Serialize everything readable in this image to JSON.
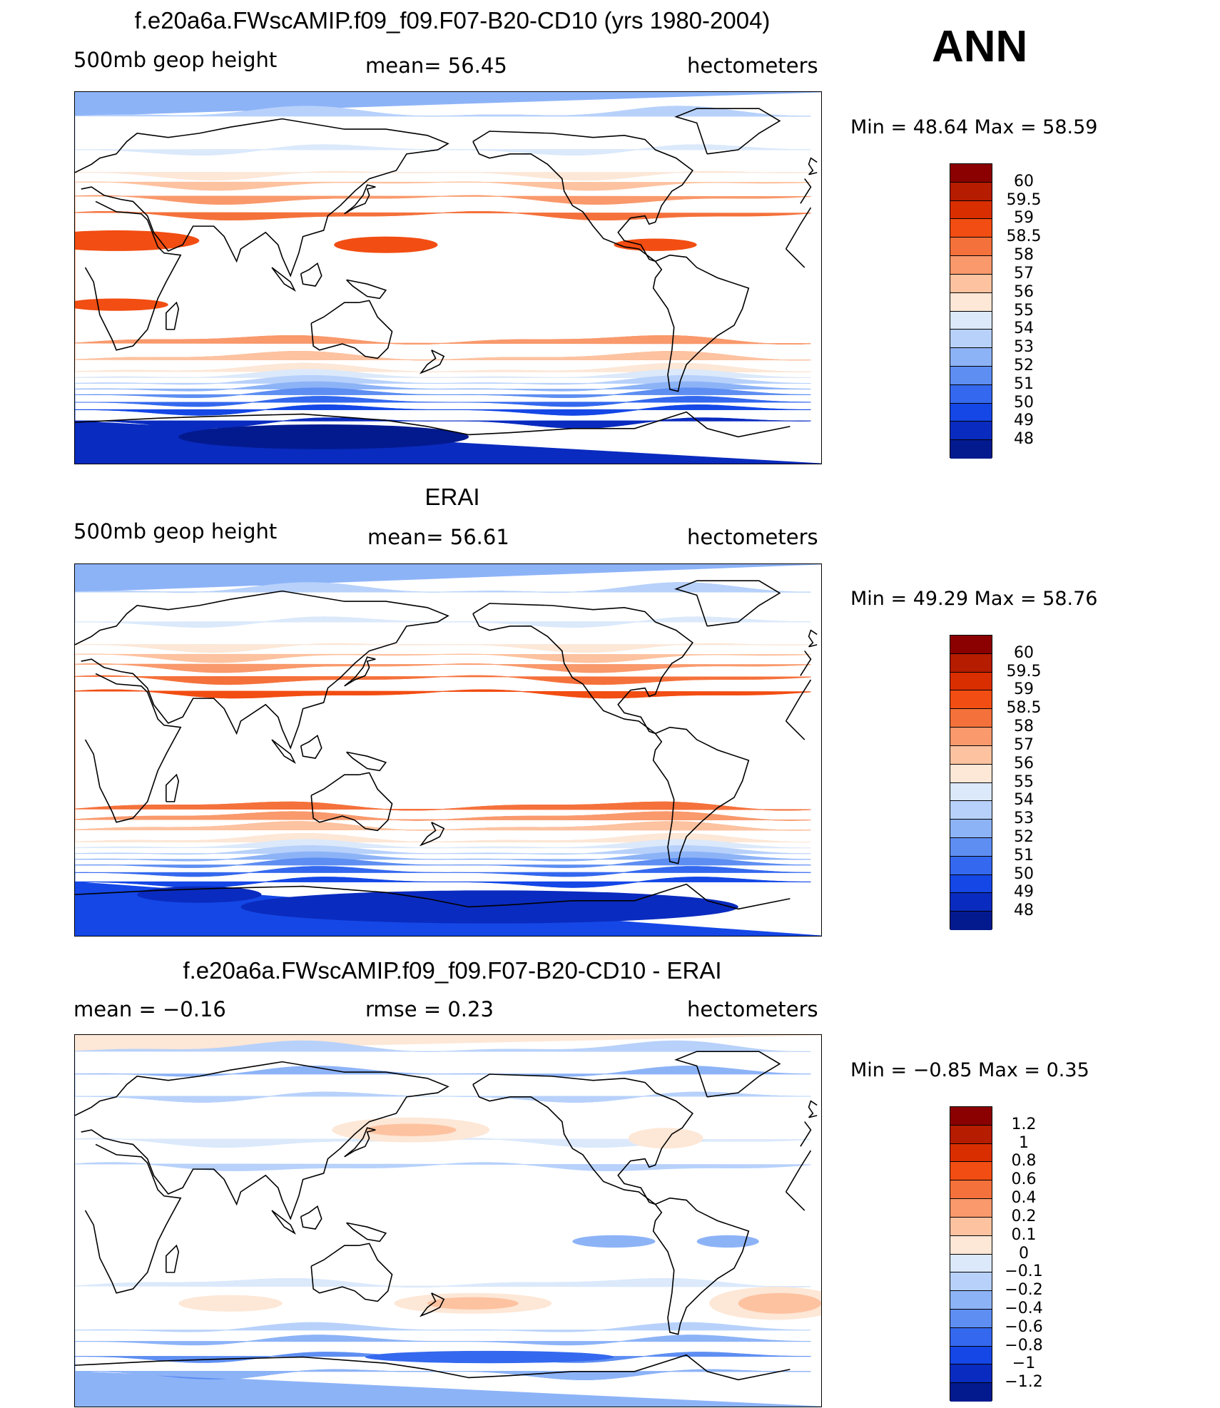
{
  "season": "ANN",
  "panels": [
    {
      "title": "f.e20a6a.FWscAMIP.f09_f09.F07-B20-CD10 (yrs 1980-2004)",
      "left_label": "500mb geop height",
      "mid_label": "mean=   56.45",
      "right_label": "hectometers",
      "min_max": "Min =    48.64  Max =    58.59",
      "legend_levels": [
        "60",
        "59.5",
        "59",
        "58.5",
        "58",
        "57",
        "56",
        "55",
        "54",
        "53",
        "52",
        "51",
        "50",
        "49",
        "48"
      ],
      "legend_colors": [
        "#8b0000",
        "#b51c00",
        "#d92e00",
        "#f24d12",
        "#f5713b",
        "#f9996c",
        "#fdc2a0",
        "#fde7d6",
        "#dbe9fb",
        "#b7d1fb",
        "#8db3f7",
        "#5e8ef2",
        "#3468ee",
        "#1447e6",
        "#0a2bbf",
        "#031a8f"
      ],
      "bands": [
        {
          "lat": 90,
          "color": "#8db3f7"
        },
        {
          "lat": 80,
          "color": "#b7d1fb"
        },
        {
          "lat": 62,
          "color": "#dbe9fb"
        },
        {
          "lat": 50,
          "color": "#fde7d6"
        },
        {
          "lat": 45,
          "color": "#fdc2a0"
        },
        {
          "lat": 38,
          "color": "#f9996c"
        },
        {
          "lat": 30,
          "color": "#f5713b"
        },
        {
          "lat": -30,
          "color": "#f9996c"
        },
        {
          "lat": -38,
          "color": "#fdc2a0"
        },
        {
          "lat": -44,
          "color": "#fde7d6"
        },
        {
          "lat": -47,
          "color": "#dbe9fb"
        },
        {
          "lat": -50,
          "color": "#b7d1fb"
        },
        {
          "lat": -53,
          "color": "#8db3f7"
        },
        {
          "lat": -56,
          "color": "#5e8ef2"
        },
        {
          "lat": -60,
          "color": "#3468ee"
        },
        {
          "lat": -64,
          "color": "#1447e6"
        },
        {
          "lat": -70,
          "color": "#0a2bbf"
        },
        {
          "lat": -90,
          "color": "#0a2bbf"
        }
      ],
      "blobs": [
        {
          "lon": 20,
          "lat": 18,
          "rlon": 40,
          "rlat": 5,
          "color": "#f24d12"
        },
        {
          "lon": 150,
          "lat": 16,
          "rlon": 25,
          "rlat": 4,
          "color": "#f24d12"
        },
        {
          "lon": 280,
          "lat": 16,
          "rlon": 20,
          "rlat": 3,
          "color": "#f24d12"
        },
        {
          "lon": 20,
          "lat": -13,
          "rlon": 25,
          "rlat": 3,
          "color": "#f24d12"
        },
        {
          "lon": 120,
          "lat": -77,
          "rlon": 70,
          "rlat": 6,
          "color": "#031a8f"
        }
      ]
    },
    {
      "title": "ERAI",
      "left_label": "500mb geop height",
      "mid_label": "mean=   56.61",
      "right_label": "hectometers",
      "min_max": "Min =    49.29  Max =    58.76",
      "legend_levels": [
        "60",
        "59.5",
        "59",
        "58.5",
        "58",
        "57",
        "56",
        "55",
        "54",
        "53",
        "52",
        "51",
        "50",
        "49",
        "48"
      ],
      "legend_colors": [
        "#8b0000",
        "#b51c00",
        "#d92e00",
        "#f24d12",
        "#f5713b",
        "#f9996c",
        "#fdc2a0",
        "#fde7d6",
        "#dbe9fb",
        "#b7d1fb",
        "#8db3f7",
        "#5e8ef2",
        "#3468ee",
        "#1447e6",
        "#0a2bbf",
        "#031a8f"
      ],
      "bands": [
        {
          "lat": 90,
          "color": "#8db3f7"
        },
        {
          "lat": 78,
          "color": "#b7d1fb"
        },
        {
          "lat": 62,
          "color": "#dbe9fb"
        },
        {
          "lat": 50,
          "color": "#fde7d6"
        },
        {
          "lat": 45,
          "color": "#fdc2a0"
        },
        {
          "lat": 40,
          "color": "#f9996c"
        },
        {
          "lat": 34,
          "color": "#f5713b"
        },
        {
          "lat": 27,
          "color": "#f24d12"
        },
        {
          "lat": -27,
          "color": "#f5713b"
        },
        {
          "lat": -32,
          "color": "#f9996c"
        },
        {
          "lat": -37,
          "color": "#fdc2a0"
        },
        {
          "lat": -43,
          "color": "#fde7d6"
        },
        {
          "lat": -46,
          "color": "#dbe9fb"
        },
        {
          "lat": -49,
          "color": "#b7d1fb"
        },
        {
          "lat": -52,
          "color": "#8db3f7"
        },
        {
          "lat": -55,
          "color": "#5e8ef2"
        },
        {
          "lat": -59,
          "color": "#3468ee"
        },
        {
          "lat": -64,
          "color": "#1447e6"
        },
        {
          "lat": -90,
          "color": "#1447e6"
        }
      ],
      "blobs": [
        {
          "lon": 200,
          "lat": -76,
          "rlon": 120,
          "rlat": 8,
          "color": "#0a2bbf"
        },
        {
          "lon": 60,
          "lat": -70,
          "rlon": 30,
          "rlat": 4,
          "color": "#0a2bbf"
        }
      ]
    },
    {
      "title": "f.e20a6a.FWscAMIP.f09_f09.F07-B20-CD10 - ERAI",
      "left_label": "mean =    −0.16",
      "mid_label": "rmse =     0.23",
      "right_label": "hectometers",
      "min_max": "Min =    −0.85  Max =      0.35",
      "legend_levels": [
        "1.2",
        "1",
        "0.8",
        "0.6",
        "0.4",
        "0.2",
        "0.1",
        "0",
        "−0.1",
        "−0.2",
        "−0.4",
        "−0.6",
        "−0.8",
        "−1",
        "−1.2"
      ],
      "legend_colors": [
        "#8b0000",
        "#b51c00",
        "#d92e00",
        "#f24d12",
        "#f5713b",
        "#f9996c",
        "#fdc2a0",
        "#fde7d6",
        "#dbe9fb",
        "#b7d1fb",
        "#8db3f7",
        "#5e8ef2",
        "#3468ee",
        "#1447e6",
        "#0a2bbf",
        "#031a8f"
      ],
      "bands": [
        {
          "lat": 90,
          "color": "#fde7d6"
        },
        {
          "lat": 84,
          "color": "#b7d1fb"
        },
        {
          "lat": 72,
          "color": "#8db3f7"
        },
        {
          "lat": 60,
          "color": "#b7d1fb"
        },
        {
          "lat": 38,
          "color": "#dbe9fb"
        },
        {
          "lat": 26,
          "color": "#b7d1fb"
        },
        {
          "lat": -30,
          "color": "#dbe9fb"
        },
        {
          "lat": -52,
          "color": "#b7d1fb"
        },
        {
          "lat": -58,
          "color": "#8db3f7"
        },
        {
          "lat": -66,
          "color": "#5e8ef2"
        },
        {
          "lat": -74,
          "color": "#8db3f7"
        },
        {
          "lat": -90,
          "color": "#8db3f7"
        }
      ],
      "blobs": [
        {
          "lon": 162,
          "lat": 44,
          "rlon": 38,
          "rlat": 6,
          "color": "#fde7d6"
        },
        {
          "lon": 162,
          "lat": 44,
          "rlon": 22,
          "rlat": 3,
          "color": "#fdc2a0"
        },
        {
          "lon": 285,
          "lat": 40,
          "rlon": 18,
          "rlat": 5,
          "color": "#fde7d6"
        },
        {
          "lon": 75,
          "lat": -40,
          "rlon": 25,
          "rlat": 4,
          "color": "#fde7d6"
        },
        {
          "lon": 192,
          "lat": -40,
          "rlon": 38,
          "rlat": 5,
          "color": "#fde7d6"
        },
        {
          "lon": 192,
          "lat": -40,
          "rlon": 22,
          "rlat": 3,
          "color": "#fdc2a0"
        },
        {
          "lon": 338,
          "lat": -40,
          "rlon": 32,
          "rlat": 8,
          "color": "#fde7d6"
        },
        {
          "lon": 340,
          "lat": -40,
          "rlon": 20,
          "rlat": 5,
          "color": "#fdc2a0"
        },
        {
          "lon": 260,
          "lat": -10,
          "rlon": 20,
          "rlat": 3,
          "color": "#8db3f7"
        },
        {
          "lon": 315,
          "lat": -10,
          "rlon": 15,
          "rlat": 3,
          "color": "#8db3f7"
        },
        {
          "lon": 200,
          "lat": -66,
          "rlon": 60,
          "rlat": 3,
          "color": "#3468ee"
        }
      ]
    }
  ]
}
